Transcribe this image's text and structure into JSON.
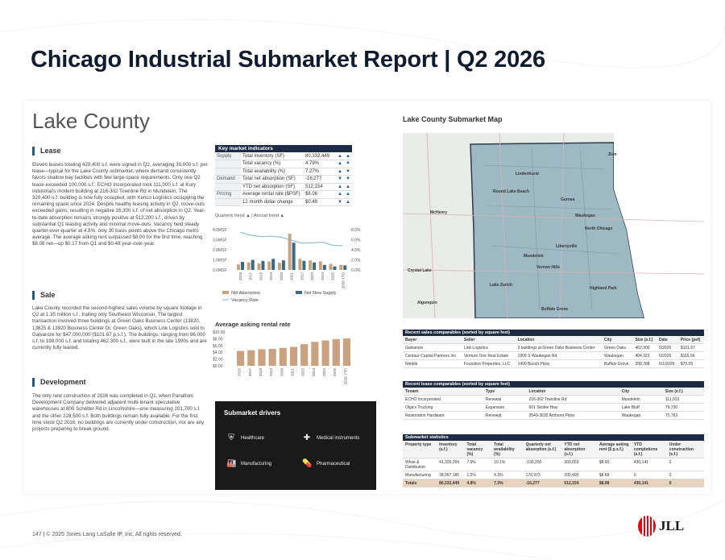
{
  "header": {
    "title": "Chicago Industrial Submarket Report | Q2 2026"
  },
  "county": "Lake County",
  "sections": {
    "lease": {
      "title": "Lease",
      "text": "Eleven leases totaling 429,400 s.f. were signed in Q2, averaging 39,000 s.f. per lease—typical for the Lake County submarket, where demand consistently favors shallow bay facilities with few large-space requirements. Only one Q2 lease exceeded 100,000 s.f.: ECHO Incorporated took 111,000 s.f. at Kury Industrial's modern building at 216-302 Townline Rd in Mundelein. The 320,400-s.f. building is now fully occupied, with Kenco Logistics occupying the remaining space since 2024. Despite healthy leasing activity in Q2, move-outs exceeded gains, resulting in negative 16,300 s.f. of net absorption in Q2. Year-to-date absorption remains strongly positive at 512,200 s.f., driven by substantial Q1 leasing activity and minimal move-outs. Vacancy held steady quarter-over-quarter at 4.8%, only 30 basis points above the Chicago metro average. The average asking rent surpassed $8.00 for the first time, reaching $8.08 net—up $0.17 from Q1 and $0.48 year-over-year."
    },
    "sale": {
      "title": "Sale",
      "text": "Lake County recorded the second-highest sales volume by square footage in Q2 at 1.35 million s.f., trailing only Southeast Wisconsin. The largest transaction involved three buildings at Green Oaks Business Center (13820, 13825 & 13920 Business Center Dr, Green Oaks), which Link Logistics sold to Galvanize for $47,000,000 ($101.67 p.s.f.). The buildings, ranging from 66,000 s.f. to 198,000 s.f. and totaling 462,300 s.f., were built in the late 1990s and are currently fully leased."
    },
    "development": {
      "title": "Development",
      "text": "The only new construction of 2026 was completed in Q1, when Panattoni Development Company delivered adjacent multi-tenant speculative warehouses at 800 Schelter Rd in Lincolnshire—one measuring 201,700 s.f. and the other 228,500 s.f. Both buildings remain fully available. For the first time since Q2 2016, no buildings are currently under construction, nor are any projects preparing to break ground."
    }
  },
  "kmi": {
    "title": "Key market indicators",
    "rows": [
      {
        "group": "Supply",
        "label": "Total inventory (SF)",
        "value": "80,332,449",
        "t1": "▲",
        "t2": "▲"
      },
      {
        "group": "",
        "label": "Total vacancy (%)",
        "value": "4.79%",
        "t1": "▲",
        "t2": "▼"
      },
      {
        "group": "",
        "label": "Total availability (%)",
        "value": "7.27%",
        "t1": "▲",
        "t2": "▼"
      },
      {
        "group": "Demand",
        "label": "Total net absorption (SF)",
        "value": "-16,277",
        "t1": "▼",
        "t2": "▼"
      },
      {
        "group": "",
        "label": "YTD net absorption (SF)",
        "value": "512,154",
        "t1": "▲",
        "t2": "▲"
      },
      {
        "group": "Pricing",
        "label": "Average rental rate ($PSF)",
        "value": "$8.08",
        "t1": "▲",
        "t2": "▲"
      },
      {
        "group": "",
        "label": "12 month dollar change",
        "value": "$0.48",
        "t1": "▼",
        "t2": "▲"
      }
    ],
    "trend_note": "Quarterly trend ▲ | Annual trend ▲"
  },
  "chart_data": [
    {
      "type": "bar",
      "categories": [
        "2016",
        "2017",
        "2018",
        "2019",
        "2020",
        "2021",
        "2022",
        "2023",
        "2024",
        "2025",
        "2026 YTD"
      ],
      "series": [
        {
          "name": "Net Absorption",
          "values": [
            0.55,
            0.75,
            0.65,
            0.85,
            0.7,
            3.6,
            1.1,
            0.95,
            0.85,
            0.6,
            0.5
          ]
        },
        {
          "name": "Net New Supply",
          "values": [
            0.8,
            1.0,
            0.9,
            1.1,
            0.95,
            2.7,
            0.9,
            0.75,
            0.5,
            0.35,
            0.45
          ]
        },
        {
          "name": "Vacancy Rate",
          "type": "line",
          "values": [
            7.5,
            6.9,
            6.6,
            6.7,
            6.5,
            5.9,
            5.3,
            5.4,
            5.5,
            4.9,
            4.8
          ]
        }
      ],
      "y_ticks": [
        "4.0MSF",
        "3.0MSF",
        "2.0MSF",
        "1.0MSF",
        "0.0MSF"
      ],
      "y2_ticks": [
        "8.0%",
        "6.0%",
        "4.0%",
        "2.0%",
        "0.0%"
      ],
      "ylim": [
        0,
        4
      ],
      "y2lim": [
        0,
        8
      ],
      "colors": {
        "absorption": "#c9a37f",
        "supply": "#3b6a83",
        "vacancy": "#7fb3d5"
      }
    },
    {
      "type": "bar",
      "title": "Average asking rental rate",
      "categories": [
        "2016",
        "2017",
        "2018",
        "2019",
        "2020",
        "2021",
        "2022",
        "2023",
        "2024",
        "2025",
        "2026 YTD"
      ],
      "values": [
        4.4,
        4.6,
        4.9,
        5.0,
        5.3,
        5.6,
        6.4,
        7.1,
        7.5,
        7.9,
        8.08
      ],
      "y_ticks": [
        "$10.00",
        "$8.00",
        "$6.00",
        "$4.00",
        "$2.00",
        "$0.00"
      ],
      "ylim": [
        0,
        10
      ],
      "color": "#c9a37f"
    }
  ],
  "legend": {
    "absorption": "Net Absorption",
    "supply": "Net New Supply",
    "vacancy": "Vacancy Rate"
  },
  "drivers": {
    "title": "Submarket drivers",
    "items": [
      {
        "label": "Healthcare",
        "icon": "shield-plus-icon",
        "glyph": "⛨"
      },
      {
        "label": "Medical instruments",
        "icon": "medical-cross-icon",
        "glyph": "✚"
      },
      {
        "label": "Manufacturing",
        "icon": "factory-icon",
        "glyph": "🏭"
      },
      {
        "label": "Pharmaceutical",
        "icon": "pill-icon",
        "glyph": "💊"
      }
    ]
  },
  "map": {
    "title": "Lake County Submarket Map",
    "labels": [
      "Zion",
      "Lindenhurst",
      "Round Lake Beach",
      "Gurnee",
      "Waukegan",
      "North Chicago",
      "McHenry",
      "Libertyville",
      "Mundelein",
      "Vernon Hills",
      "Crystal Lake",
      "Lake Zurich",
      "Highland Park",
      "Algonquin",
      "Buffalo Grove"
    ]
  },
  "sales": {
    "title": "Recent sales comparables (sorted by square feet)",
    "headers": [
      "Buyer",
      "Seller",
      "Location",
      "City",
      "Size (s.f.)",
      "Date",
      "Price (psf)"
    ],
    "rows": [
      [
        "Galvanize",
        "Link Logistics",
        "3 buildings at Green Oaks Business Center",
        "Green Oaks",
        "462,300",
        "5/2026",
        "$101.67"
      ],
      [
        "Centaur Capital Partners Inc",
        "Venture One Real Estate",
        "1909 S Waukegan Rd",
        "Waukegan",
        "404,923",
        "6/2026",
        "$115.56"
      ],
      [
        "Nimlok",
        "Founders Properties, LLC",
        "1400 Busch Pkwy",
        "Buffalo Grove",
        "208,788",
        "5/1/2026",
        "$70.05"
      ]
    ]
  },
  "leases": {
    "title": "Recent lease comparables (sorted by square feet)",
    "headers": [
      "Tenant",
      "Type",
      "Location",
      "City",
      "Size (s.f.)"
    ],
    "rows": [
      [
        "ECHO Incorporated",
        "Renewal",
        "216-302 Townline Rd",
        "Mundelein",
        "111,013"
      ],
      [
        "Olga's Trucking",
        "Expansion",
        "601 Skokie Hwy",
        "Lake Bluff",
        "79,730"
      ],
      [
        "Restoration Hardware",
        "Renewal",
        "3540-3630 Amhurst Pkwy",
        "Waukegan",
        "70,763"
      ]
    ]
  },
  "stats": {
    "title": "Submarket statistics",
    "headers": [
      "Property type",
      "Inventory (s.f.)",
      "Total vacancy (%)",
      "Total availability (%)",
      "Quarterly net absorption (s.f.)",
      "YTD net absorption (s.f.)",
      "Average asking rent ($ p.s.f.)",
      "YTD completions (s.f.)",
      "Under construction (s.f.)"
    ],
    "rows": [
      [
        "Whse & Distribution",
        "41,335,264",
        "7.9%",
        "10.1%",
        "-193,250",
        "309,659",
        "$8.00",
        "430,141",
        "0"
      ],
      [
        "Manufacturing",
        "38,997,185",
        "1.5%",
        "4.3%",
        "176,973",
        "202,495",
        "$8.68",
        "0",
        "0"
      ]
    ],
    "total": [
      "Totals",
      "80,332,449",
      "4.8%",
      "7.3%",
      "-16,277",
      "512,154",
      "$8.08",
      "430,141",
      "0"
    ]
  },
  "footer": {
    "text": "147 | © 2025 Jones Lang LaSalle IP, Inc. All rights reserved."
  },
  "logo": {
    "text": "JLL"
  }
}
